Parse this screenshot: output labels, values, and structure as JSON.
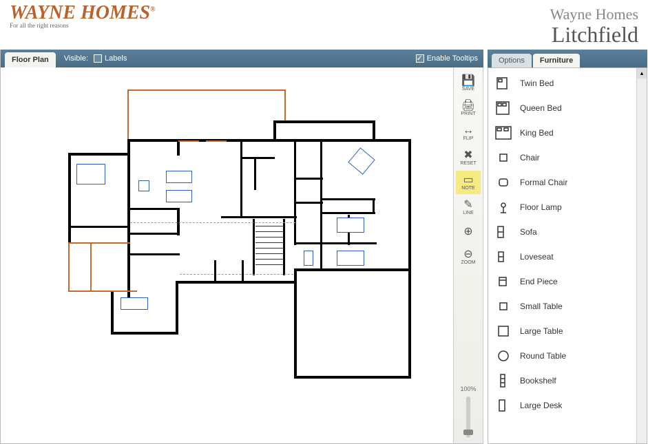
{
  "header": {
    "logo_main": "WAYNE HOMES",
    "logo_reg": "®",
    "logo_tag": "For all the right reasons",
    "company": "Wayne Homes",
    "plan_name": "Litchfield"
  },
  "toolbar": {
    "tab_floorplan": "Floor Plan",
    "visible_label": "Visible:",
    "labels_label": "Labels",
    "labels_checked": false,
    "tooltips_label": "Enable Tooltips",
    "tooltips_checked": true
  },
  "tools": {
    "save": "SAVE",
    "print": "PRINT",
    "flip": "FLIP",
    "reset": "RESET",
    "note": "NOTE",
    "line": "LINE",
    "zoom": "ZOOM",
    "zoom_pct": "100%"
  },
  "right_tabs": {
    "options": "Options",
    "furniture": "Furniture"
  },
  "furniture": [
    {
      "label": "Twin Bed",
      "icon": "bed-twin"
    },
    {
      "label": "Queen Bed",
      "icon": "bed-queen"
    },
    {
      "label": "King Bed",
      "icon": "bed-king"
    },
    {
      "label": "Chair",
      "icon": "chair"
    },
    {
      "label": "Formal Chair",
      "icon": "formal-chair"
    },
    {
      "label": "Floor Lamp",
      "icon": "lamp"
    },
    {
      "label": "Sofa",
      "icon": "sofa"
    },
    {
      "label": "Loveseat",
      "icon": "loveseat"
    },
    {
      "label": "End Piece",
      "icon": "end"
    },
    {
      "label": "Small Table",
      "icon": "small-table"
    },
    {
      "label": "Large Table",
      "icon": "large-table"
    },
    {
      "label": "Round Table",
      "icon": "round-table"
    },
    {
      "label": "Bookshelf",
      "icon": "bookshelf"
    },
    {
      "label": "Large Desk",
      "icon": "large-desk"
    }
  ],
  "colors": {
    "toolbar_bg": "#4a6d87",
    "accent": "#b8632c",
    "furn_blue": "#2b5fc5"
  }
}
